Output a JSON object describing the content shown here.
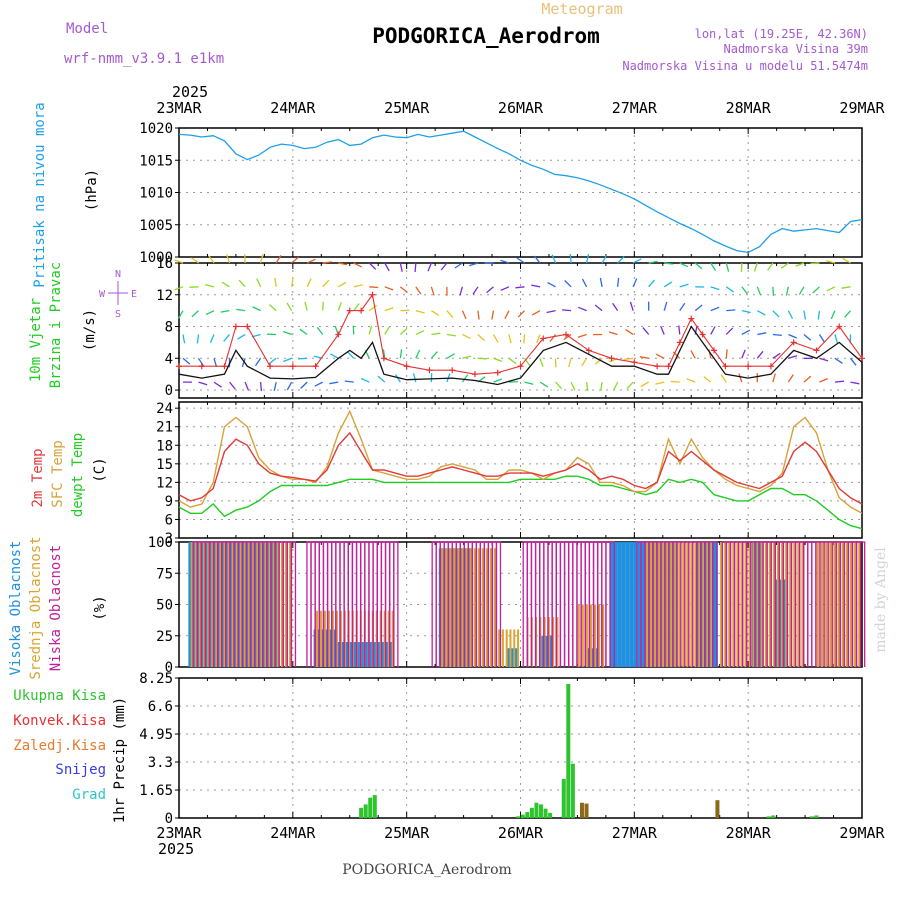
{
  "header": {
    "model_label": "Model",
    "model_name": "wrf-nmm_v3.9.1 e1km",
    "product": "Meteogram",
    "station": "PODGORICA_Aerodrom",
    "lonlat": "lon,lat (19.25E, 42.36N)",
    "elevation": "Nadmorska Visina 39m",
    "model_elevation": "Nadmorska Visina u modelu 51.5474m",
    "footer_station": "PODGORICA_Aerodrom",
    "credit": "made by Angel",
    "year": "2025"
  },
  "colors": {
    "pressure": "#1ea0e8",
    "wind_speed": "#111111",
    "gust": "#e83030",
    "t2m": "#e03a3a",
    "sfc": "#d8a23a",
    "dewpt": "#22cc22",
    "high_cloud": "#2090e0",
    "mid_cloud": "#d9a530",
    "low_cloud": "#c21f9a",
    "precip_total": "#2ec42e",
    "precip_other": "#8a6a18",
    "grid": "#999999"
  },
  "x_ticks": [
    "23MAR",
    "24MAR",
    "25MAR",
    "26MAR",
    "27MAR",
    "28MAR",
    "29MAR"
  ],
  "chart_data": [
    {
      "type": "line",
      "id": "pressure",
      "ylabel": [
        "Pritisak na nivou mora",
        "(hPa)"
      ],
      "ylim": [
        1000,
        1020
      ],
      "yticks": [
        1000,
        1005,
        1010,
        1015,
        1020
      ],
      "x_days": [
        0,
        0.1,
        0.2,
        0.3,
        0.4,
        0.5,
        0.6,
        0.7,
        0.8,
        0.9,
        1.0,
        1.1,
        1.2,
        1.3,
        1.4,
        1.5,
        1.6,
        1.7,
        1.8,
        1.9,
        2.0,
        2.1,
        2.2,
        2.3,
        2.4,
        2.5,
        2.6,
        2.7,
        2.8,
        2.9,
        3.0,
        3.1,
        3.2,
        3.3,
        3.4,
        3.5,
        3.6,
        3.7,
        3.8,
        3.9,
        4.0,
        4.1,
        4.2,
        4.3,
        4.4,
        4.5,
        4.6,
        4.7,
        4.8,
        4.9,
        5.0,
        5.1,
        5.2,
        5.3,
        5.4,
        5.5,
        5.6,
        5.7,
        5.8,
        5.9,
        6.0
      ],
      "series": [
        {
          "values": [
            1019,
            1018.9,
            1018.6,
            1018.8,
            1018,
            1016,
            1015.1,
            1015.8,
            1017,
            1017.5,
            1017.3,
            1016.8,
            1017,
            1017.8,
            1018.2,
            1017.3,
            1017.5,
            1018.5,
            1018.9,
            1018.6,
            1018.5,
            1019,
            1018.6,
            1018.9,
            1019.2,
            1019.5,
            1018.6,
            1017.7,
            1016.8,
            1016,
            1015,
            1014.2,
            1013.6,
            1012.8,
            1012.6,
            1012.3,
            1011.8,
            1011.2,
            1010.5,
            1009.8,
            1009,
            1008,
            1007,
            1006.1,
            1005.2,
            1004.4,
            1003.5,
            1002.5,
            1001.7,
            1001,
            1000.7,
            1001.6,
            1003.5,
            1004.4,
            1004,
            1004.2,
            1004.4,
            1004.1,
            1003.8,
            1005.5,
            1005.8
          ]
        }
      ]
    },
    {
      "type": "line",
      "id": "wind",
      "ylabel": [
        "10m Vjetar",
        "Brzina i Pravac",
        "(m/s)"
      ],
      "direction_key": [
        "N",
        "W",
        "E",
        "S"
      ],
      "ylim": [
        -1,
        16
      ],
      "yticks": [
        0,
        4,
        8,
        12,
        16
      ],
      "x_days": [
        0,
        0.2,
        0.4,
        0.5,
        0.6,
        0.8,
        1.0,
        1.2,
        1.4,
        1.5,
        1.6,
        1.7,
        1.8,
        2.0,
        2.2,
        2.4,
        2.6,
        2.8,
        3.0,
        3.2,
        3.4,
        3.6,
        3.8,
        4.0,
        4.2,
        4.3,
        4.4,
        4.5,
        4.6,
        4.7,
        4.8,
        5.0,
        5.2,
        5.4,
        5.6,
        5.8,
        6.0
      ],
      "series": [
        {
          "name": "speed",
          "values": [
            2,
            1.5,
            2,
            5,
            3,
            1.5,
            1.4,
            1.6,
            4,
            5,
            4,
            6,
            2,
            1.3,
            1.4,
            1.5,
            1.2,
            0.7,
            1.5,
            5,
            6,
            4.5,
            3,
            3,
            2,
            2,
            5,
            8,
            6,
            4,
            2,
            1.5,
            2,
            5,
            4,
            6,
            3.5
          ]
        },
        {
          "name": "gust",
          "values": [
            3,
            3,
            3,
            8,
            8,
            3,
            3,
            3,
            7,
            10,
            10,
            12,
            4,
            3,
            2.5,
            2.5,
            2,
            2.2,
            3,
            6.5,
            7,
            5,
            4,
            3.5,
            3,
            3,
            6,
            9,
            7,
            5,
            3,
            3,
            3,
            6,
            5,
            8,
            4
          ]
        }
      ]
    },
    {
      "type": "line",
      "id": "temperature",
      "ylabel": [
        "2m Temp",
        "SFC Temp",
        "dewpt Temp",
        "(C)"
      ],
      "ylim": [
        3,
        25
      ],
      "yticks": [
        3,
        6,
        9,
        12,
        15,
        18,
        21,
        24
      ],
      "x_days": [
        0,
        0.1,
        0.2,
        0.3,
        0.4,
        0.5,
        0.6,
        0.7,
        0.8,
        0.9,
        1.0,
        1.1,
        1.2,
        1.3,
        1.4,
        1.5,
        1.6,
        1.7,
        1.8,
        1.9,
        2.0,
        2.1,
        2.2,
        2.3,
        2.4,
        2.5,
        2.6,
        2.7,
        2.8,
        2.9,
        3.0,
        3.1,
        3.2,
        3.3,
        3.4,
        3.5,
        3.6,
        3.7,
        3.8,
        3.9,
        4.0,
        4.1,
        4.2,
        4.3,
        4.4,
        4.5,
        4.6,
        4.7,
        4.8,
        4.9,
        5.0,
        5.1,
        5.2,
        5.3,
        5.4,
        5.5,
        5.6,
        5.7,
        5.8,
        5.9,
        6.0
      ],
      "series": [
        {
          "name": "2m",
          "values": [
            10,
            9,
            9.5,
            11,
            17,
            19,
            18,
            15,
            13.5,
            13,
            12.8,
            12.5,
            12.2,
            14,
            18,
            20,
            17,
            14,
            14,
            13.5,
            13,
            13,
            13.5,
            14,
            14.5,
            14,
            13.5,
            13,
            13,
            13.5,
            13.5,
            13.5,
            13,
            13.5,
            14,
            15,
            14,
            12.5,
            13,
            12.5,
            11.5,
            11,
            12,
            17,
            15.5,
            17,
            15.5,
            14,
            13,
            12,
            11.5,
            11,
            12,
            13,
            17,
            18.5,
            17,
            14,
            11,
            9.5,
            8.5
          ]
        },
        {
          "name": "sfc",
          "values": [
            9,
            8,
            8.5,
            12,
            21,
            22.5,
            21,
            16,
            14,
            13,
            12.5,
            12.5,
            12,
            14.5,
            20,
            23.5,
            19,
            14,
            13.5,
            13,
            12.5,
            12.5,
            13,
            14.5,
            15,
            14.5,
            14,
            12.5,
            12.5,
            14,
            14,
            13.5,
            12.5,
            13.5,
            14,
            16,
            15,
            12,
            12,
            11.5,
            10.5,
            10.5,
            12,
            19,
            15,
            19,
            16,
            14,
            12.5,
            11.5,
            11,
            10.5,
            11.5,
            13.5,
            21,
            22.5,
            20,
            14,
            9.5,
            8,
            7
          ]
        },
        {
          "name": "dewpt",
          "values": [
            8,
            7,
            7,
            8.5,
            6.5,
            7.5,
            8,
            9,
            10.5,
            11.5,
            11.5,
            11.5,
            11.5,
            11.5,
            12,
            12.5,
            12.5,
            12.5,
            12,
            12,
            12,
            12,
            12,
            12,
            12,
            12,
            12,
            12,
            12,
            12,
            12.5,
            12.5,
            12.5,
            12.5,
            13,
            13,
            12.5,
            11.5,
            11.5,
            11,
            10.5,
            10,
            10.5,
            12.5,
            12,
            12.5,
            12,
            10,
            9.5,
            9,
            9,
            10,
            11,
            11,
            10,
            10,
            9,
            7.5,
            6,
            5,
            4.5
          ]
        }
      ]
    },
    {
      "type": "bar",
      "id": "clouds",
      "ylabel": [
        "Visoka Oblacnost",
        "Srednja Oblacnost",
        "Niska Oblacnost",
        "(%)"
      ],
      "ylim": [
        0,
        100
      ],
      "yticks": [
        0,
        25,
        50,
        75,
        100
      ],
      "series": [
        {
          "name": "Visoka Oblacnost",
          "segments": [
            [
              0.1,
              0.9,
              100
            ],
            [
              1.2,
              1.4,
              30
            ],
            [
              1.4,
              1.9,
              20
            ],
            [
              2.3,
              2.6,
              95
            ],
            [
              2.9,
              3.0,
              15
            ],
            [
              3.2,
              3.3,
              25
            ],
            [
              3.6,
              3.7,
              15
            ],
            [
              3.8,
              4.4,
              100
            ],
            [
              4.55,
              4.75,
              100
            ],
            [
              5.05,
              5.15,
              100
            ],
            [
              5.25,
              5.35,
              70
            ]
          ]
        },
        {
          "name": "Srednja Oblacnost",
          "segments": [
            [
              0.1,
              1.0,
              100
            ],
            [
              1.2,
              1.9,
              45
            ],
            [
              2.3,
              2.8,
              95
            ],
            [
              2.8,
              3.0,
              30
            ],
            [
              3.05,
              3.35,
              40
            ],
            [
              3.5,
              3.75,
              50
            ],
            [
              4.1,
              4.7,
              100
            ],
            [
              4.75,
              5.5,
              100
            ],
            [
              5.6,
              6.0,
              100
            ]
          ]
        },
        {
          "name": "Niska Oblacnost",
          "segments": [
            [
              0.1,
              1.0,
              100
            ],
            [
              1.1,
              1.9,
              100
            ],
            [
              2.2,
              2.8,
              100
            ],
            [
              3.0,
              3.8,
              100
            ],
            [
              4.0,
              4.7,
              100
            ],
            [
              4.75,
              6.0,
              100
            ]
          ]
        }
      ]
    },
    {
      "type": "bar",
      "id": "precip",
      "ylabel": [
        "1hr Precip (mm)"
      ],
      "legend": [
        "Ukupna Kisa",
        "Konvek.Kisa",
        "Zaledj.Kisa",
        "Snijeg",
        "Grad"
      ],
      "legend_colors": [
        "#2ec42e",
        "#e83030",
        "#e87a30",
        "#3a3ae8",
        "#2cc8c8"
      ],
      "ylim": [
        0,
        8.25
      ],
      "yticks": [
        0,
        1.65,
        3.3,
        4.95,
        6.6,
        8.25
      ],
      "bars": [
        {
          "x": 1.6,
          "v": 0.6,
          "s": "total"
        },
        {
          "x": 1.64,
          "v": 0.8,
          "s": "total"
        },
        {
          "x": 1.68,
          "v": 1.2,
          "s": "total"
        },
        {
          "x": 1.72,
          "v": 1.35,
          "s": "total"
        },
        {
          "x": 2.98,
          "v": 0.1,
          "s": "total"
        },
        {
          "x": 3.02,
          "v": 0.2,
          "s": "total"
        },
        {
          "x": 3.06,
          "v": 0.35,
          "s": "total"
        },
        {
          "x": 3.1,
          "v": 0.6,
          "s": "total"
        },
        {
          "x": 3.14,
          "v": 0.9,
          "s": "total"
        },
        {
          "x": 3.18,
          "v": 0.8,
          "s": "total"
        },
        {
          "x": 3.22,
          "v": 0.55,
          "s": "total"
        },
        {
          "x": 3.26,
          "v": 0.3,
          "s": "total"
        },
        {
          "x": 3.38,
          "v": 2.3,
          "s": "total"
        },
        {
          "x": 3.42,
          "v": 7.9,
          "s": "total"
        },
        {
          "x": 3.46,
          "v": 3.2,
          "s": "total"
        },
        {
          "x": 3.54,
          "v": 0.9,
          "s": "other"
        },
        {
          "x": 3.58,
          "v": 0.85,
          "s": "other"
        },
        {
          "x": 4.73,
          "v": 1.05,
          "s": "other"
        },
        {
          "x": 5.18,
          "v": 0.1,
          "s": "total"
        },
        {
          "x": 5.22,
          "v": 0.15,
          "s": "total"
        },
        {
          "x": 5.56,
          "v": 0.1,
          "s": "total"
        },
        {
          "x": 5.6,
          "v": 0.15,
          "s": "total"
        }
      ]
    }
  ]
}
